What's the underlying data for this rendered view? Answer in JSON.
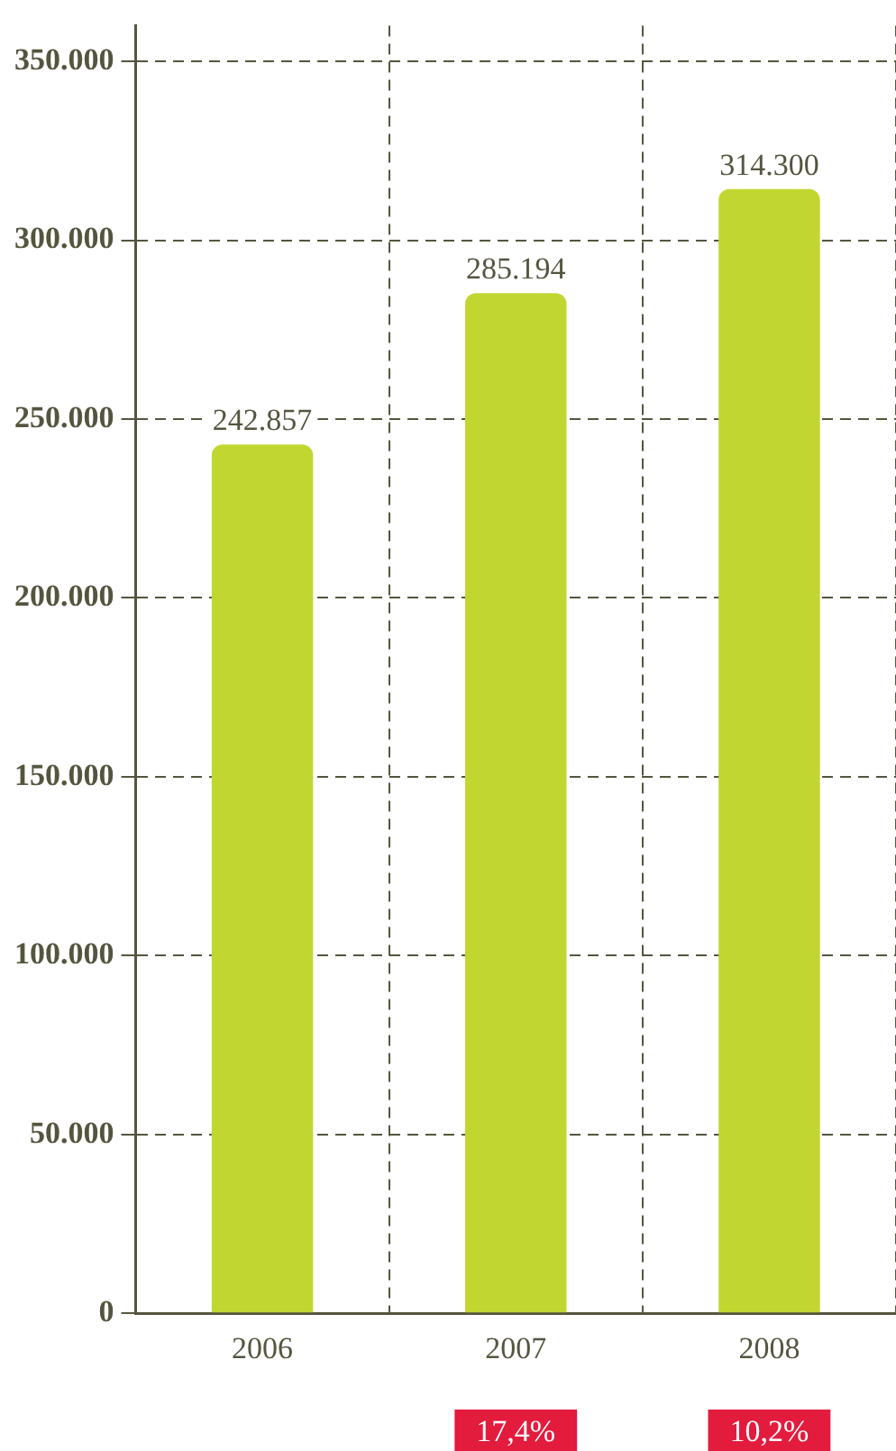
{
  "chart_data": {
    "type": "bar",
    "categories": [
      "2006",
      "2007",
      "2008"
    ],
    "values": [
      242857,
      285194,
      314300
    ],
    "value_labels": [
      "242.857",
      "285.194",
      "314.300"
    ],
    "color": "#c2d631",
    "ylim": [
      0,
      360000
    ],
    "yticks": [
      {
        "value": 0,
        "label": "0"
      },
      {
        "value": 50000,
        "label": "50.000"
      },
      {
        "value": 100000,
        "label": "100.000"
      },
      {
        "value": 150000,
        "label": "150.000"
      },
      {
        "value": 200000,
        "label": "200.000"
      },
      {
        "value": 250000,
        "label": "250.000"
      },
      {
        "value": 300000,
        "label": "300.000"
      },
      {
        "value": 350000,
        "label": "350.000"
      }
    ],
    "grid": true,
    "annotations": [
      "17,4%",
      "10,2%"
    ]
  }
}
